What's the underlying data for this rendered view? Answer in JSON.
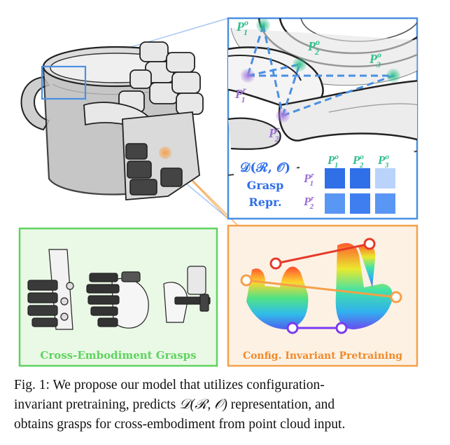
{
  "figure": {
    "points": {
      "p1o": {
        "base": "P",
        "sub": "1",
        "sup": "o"
      },
      "p2o": {
        "base": "P",
        "sub": "2",
        "sup": "o"
      },
      "p3o": {
        "base": "P",
        "sub": "3",
        "sup": "o"
      },
      "p1r": {
        "base": "P",
        "sub": "1",
        "sup": "r"
      },
      "p2r": {
        "base": "P",
        "sub": "2",
        "sup": "r"
      }
    },
    "repr": {
      "formula": "𝒟(ℛ, 𝒪)",
      "line1": "Grasp",
      "line2": "Repr."
    },
    "matrix": {
      "col_headers": [
        {
          "base": "P",
          "sub": "1",
          "sup": "o"
        },
        {
          "base": "P",
          "sub": "2",
          "sup": "o"
        },
        {
          "base": "P",
          "sub": "3",
          "sup": "o"
        }
      ],
      "row_headers": [
        {
          "base": "P",
          "sub": "1",
          "sup": "r"
        },
        {
          "base": "P",
          "sub": "2",
          "sup": "r"
        }
      ],
      "cells": [
        [
          "#2f6fe8",
          "#2f6fe8",
          "#b9d3fb"
        ],
        [
          "#5a96f3",
          "#3f7ef0",
          "#5a96f3"
        ]
      ]
    },
    "labels": {
      "cross_embodiment": "Cross-Embodiment Grasps",
      "config_pretraining": "Config. Invariant Pretraining"
    },
    "colors": {
      "blue": "#4a90e2",
      "green": "#5fd35f",
      "orange": "#f5a04a",
      "teal": "#2fbf8a",
      "purple": "#9b6fd6"
    }
  },
  "caption": {
    "line1": "Fig. 1: We propose our model that utilizes configuration-",
    "line2_a": "invariant pretraining, predicts ",
    "line2_math": "𝒟(ℛ, 𝒪)",
    "line2_b": " representation, and",
    "line3": "obtains grasps for cross-embodiment from point cloud input."
  }
}
